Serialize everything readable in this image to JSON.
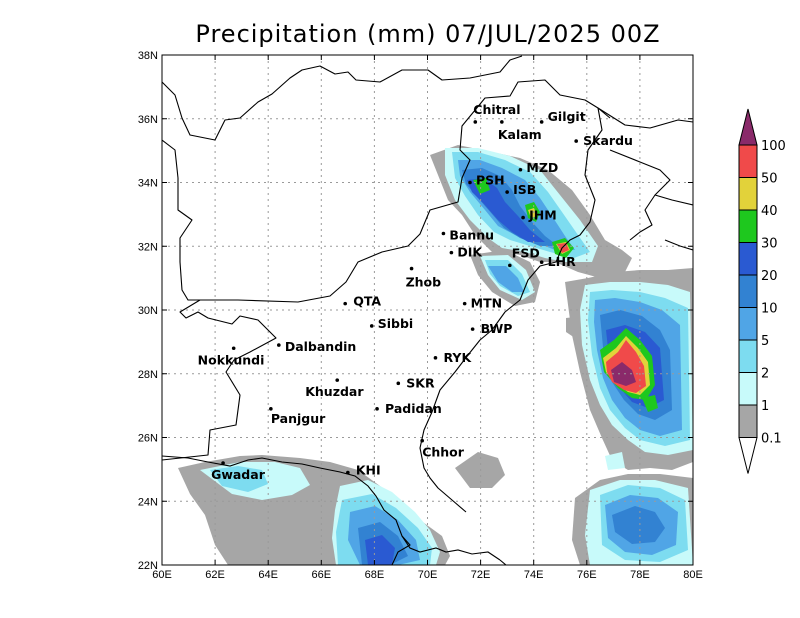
{
  "title": "Precipitation (mm) 07/JUL/2025 00Z",
  "map": {
    "lon_range": [
      60,
      80
    ],
    "lat_range": [
      22,
      38
    ],
    "lon_ticks": [
      "60E",
      "62E",
      "64E",
      "66E",
      "68E",
      "70E",
      "72E",
      "74E",
      "76E",
      "78E",
      "80E"
    ],
    "lat_ticks": [
      "22N",
      "24N",
      "26N",
      "28N",
      "30N",
      "32N",
      "34N",
      "36N",
      "38N"
    ],
    "gridlines": true
  },
  "cities": [
    {
      "name": "Chitral",
      "lon": 71.8,
      "lat": 35.9
    },
    {
      "name": "Gilgit",
      "lon": 74.3,
      "lat": 35.9
    },
    {
      "name": "Kalam",
      "lon": 72.8,
      "lat": 35.9
    },
    {
      "name": "Skardu",
      "lon": 75.6,
      "lat": 35.3
    },
    {
      "name": "MZD",
      "lon": 73.5,
      "lat": 34.4
    },
    {
      "name": "PSH",
      "lon": 71.6,
      "lat": 34.0
    },
    {
      "name": "ISB",
      "lon": 73.0,
      "lat": 33.7
    },
    {
      "name": "JHM",
      "lon": 73.6,
      "lat": 32.9
    },
    {
      "name": "Bannu",
      "lon": 70.6,
      "lat": 32.4
    },
    {
      "name": "DIK",
      "lon": 70.9,
      "lat": 31.8
    },
    {
      "name": "FSD",
      "lon": 73.1,
      "lat": 31.4
    },
    {
      "name": "LHR",
      "lon": 74.3,
      "lat": 31.5
    },
    {
      "name": "Zhob",
      "lon": 69.4,
      "lat": 31.3
    },
    {
      "name": "QTA",
      "lon": 66.9,
      "lat": 30.2
    },
    {
      "name": "MTN",
      "lon": 71.4,
      "lat": 30.2
    },
    {
      "name": "Sibbi",
      "lon": 67.9,
      "lat": 29.5
    },
    {
      "name": "BWP",
      "lon": 71.7,
      "lat": 29.4
    },
    {
      "name": "Dalbandin",
      "lon": 64.4,
      "lat": 28.9
    },
    {
      "name": "Nokkundi",
      "lon": 62.7,
      "lat": 28.8
    },
    {
      "name": "RYK",
      "lon": 70.3,
      "lat": 28.5
    },
    {
      "name": "Khuzdar",
      "lon": 66.6,
      "lat": 27.8
    },
    {
      "name": "SKR",
      "lon": 68.9,
      "lat": 27.7
    },
    {
      "name": "Padidan",
      "lon": 68.1,
      "lat": 26.9
    },
    {
      "name": "Panjgur",
      "lon": 64.1,
      "lat": 26.9
    },
    {
      "name": "Chhor",
      "lon": 69.8,
      "lat": 25.9
    },
    {
      "name": "Gwadar",
      "lon": 62.3,
      "lat": 25.2
    },
    {
      "name": "KHI",
      "lon": 67.0,
      "lat": 24.9
    }
  ],
  "colorbar": {
    "labels": [
      "100",
      "50",
      "40",
      "30",
      "20",
      "10",
      "5",
      "2",
      "1",
      "0.1"
    ],
    "colors": {
      "over": "#8a2a6a",
      "50_100": "#f04a4a",
      "40_50": "#e2d23a",
      "30_40": "#1ec81e",
      "20_30": "#2a5ad2",
      "10_20": "#3282d2",
      "5_10": "#50a5e6",
      "2_5": "#7ddcf0",
      "1_2": "#c8fafa",
      "0.1_1": "#a6a6a6",
      "under": "#ffffff"
    }
  }
}
